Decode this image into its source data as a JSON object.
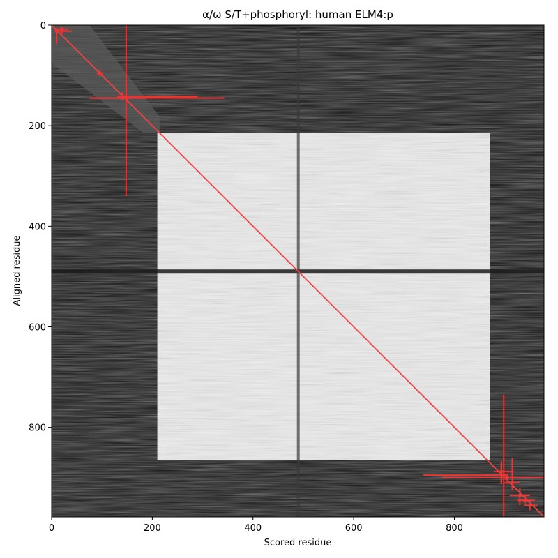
{
  "chart_data": {
    "type": "heatmap",
    "title": "α/ω S/T+phosphoryl: human ELM4:p",
    "xlabel": "Scored residue",
    "ylabel": "Aligned residue",
    "xlim": [
      0,
      978
    ],
    "ylim": [
      978,
      0
    ],
    "x_ticks": [
      0,
      200,
      400,
      600,
      800
    ],
    "y_ticks": [
      0,
      200,
      400,
      600,
      800
    ],
    "colormap": "grayscale",
    "bright_block": {
      "x": [
        210,
        870
      ],
      "y": [
        215,
        865
      ]
    },
    "bright_corner": {
      "x": [
        0,
        215
      ],
      "y": [
        0,
        215
      ]
    },
    "dark_bands": [
      {
        "axis": "y",
        "at": 490
      },
      {
        "axis": "x",
        "at": 490
      }
    ],
    "diagonal": {
      "from": [
        0,
        0
      ],
      "to": [
        978,
        978
      ],
      "color": "#ef4444"
    },
    "error_bar_color": "#ef3434",
    "error_bars": [
      {
        "x": 10,
        "y": 12,
        "xerr": [
          4,
          30
        ],
        "yerr": [
          6,
          25
        ]
      },
      {
        "x": 20,
        "y": 8,
        "xerr": [
          8,
          12
        ],
        "yerr": [
          4,
          10
        ]
      },
      {
        "x": 96,
        "y": 96,
        "xerr": [
          6,
          6
        ],
        "yerr": [
          8,
          6
        ]
      },
      {
        "x": 140,
        "y": 142,
        "xerr": [
          10,
          150
        ],
        "yerr": [
          8,
          8
        ]
      },
      {
        "x": 148,
        "y": 145,
        "xerr": [
          73,
          195
        ],
        "yerr": [
          145,
          195
        ]
      },
      {
        "x": 893,
        "y": 888,
        "xerr": [
          15,
          25
        ],
        "yerr": [
          20,
          25
        ]
      },
      {
        "x": 898,
        "y": 895,
        "xerr": [
          160,
          5
        ],
        "yerr": [
          160,
          83
        ]
      },
      {
        "x": 905,
        "y": 900,
        "xerr": [
          130,
          73
        ],
        "yerr": [
          8,
          6
        ]
      },
      {
        "x": 915,
        "y": 910,
        "xerr": [
          15,
          15
        ],
        "yerr": [
          50,
          15
        ]
      },
      {
        "x": 930,
        "y": 935,
        "xerr": [
          20,
          20
        ],
        "yerr": [
          15,
          20
        ]
      },
      {
        "x": 940,
        "y": 945,
        "xerr": [
          15,
          20
        ],
        "yerr": [
          12,
          12
        ]
      },
      {
        "x": 950,
        "y": 955,
        "xerr": [
          12,
          15
        ],
        "yerr": [
          10,
          10
        ]
      }
    ]
  }
}
